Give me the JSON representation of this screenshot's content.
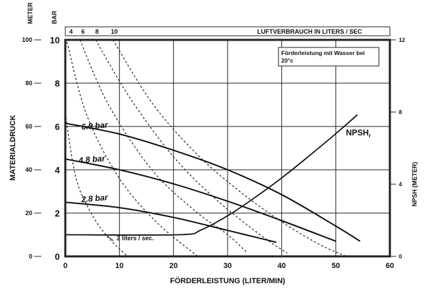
{
  "chart_data": {
    "type": "line",
    "xlabel": "FÖRDERLEISTUNG (LITER/MIN)",
    "ylabel": "MATERIALDRUCK",
    "unit_left_outer": "METER",
    "unit_left_inner": "BAR",
    "y2label": "NPSH (METER)",
    "top_axis_title": "LUFTVERBRAUCH IN LITERS / SEC",
    "note": "Förderleistung mit Wasser bei 20°c",
    "xlim": [
      0,
      60
    ],
    "ylim_bar": [
      0,
      10
    ],
    "ylim_meter": [
      0,
      100
    ],
    "ylim_npsh": [
      0,
      12
    ],
    "x_ticks": [
      "0",
      "10",
      "20",
      "30",
      "40",
      "50",
      "60"
    ],
    "y_bar_ticks": [
      "0",
      "2",
      "4",
      "6",
      "8",
      "10"
    ],
    "y_meter_ticks": [
      "0",
      "20",
      "40",
      "60",
      "80",
      "100"
    ],
    "y_npsh_ticks": [
      "0",
      "4",
      "8",
      "12"
    ],
    "top_ticks": [
      "4",
      "6",
      "8",
      "10"
    ],
    "grid": true,
    "pressure_series": [
      {
        "name": "6.9 bar",
        "x": [
          0,
          10,
          20,
          30,
          40,
          50,
          54.5
        ],
        "y": [
          6.15,
          5.65,
          4.9,
          4.0,
          2.85,
          1.4,
          0.7
        ]
      },
      {
        "name": "4.8 bar",
        "x": [
          0,
          10,
          20,
          30,
          40,
          50
        ],
        "y": [
          4.5,
          4.0,
          3.35,
          2.55,
          1.65,
          0.7
        ]
      },
      {
        "name": "2.8 bar",
        "x": [
          0,
          10,
          20,
          30,
          39
        ],
        "y": [
          2.5,
          2.25,
          1.8,
          1.2,
          0.65
        ]
      }
    ],
    "air_series": [
      {
        "name": "2 liters / sec.",
        "x": [
          0,
          2,
          5,
          8,
          11.5
        ],
        "y": [
          6.6,
          3.6,
          1.9,
          0.85,
          0.0
        ]
      },
      {
        "name": "4",
        "x": [
          0.3,
          4,
          10,
          17,
          24.5
        ],
        "y": [
          9.9,
          6.5,
          3.6,
          1.55,
          0.0
        ]
      },
      {
        "name": "6",
        "x": [
          2.7,
          8,
          16,
          24,
          30,
          33.5
        ],
        "y": [
          10,
          7.0,
          4.0,
          2.1,
          1.0,
          0.2
        ]
      },
      {
        "name": "8",
        "x": [
          5.6,
          12,
          20,
          28,
          36,
          41
        ],
        "y": [
          10,
          7.3,
          4.6,
          2.6,
          1.0,
          0.15
        ]
      },
      {
        "name": "10",
        "x": [
          8.8,
          16,
          24,
          32,
          40,
          47,
          52
        ],
        "y": [
          10,
          7.1,
          4.8,
          3.05,
          1.6,
          0.55,
          0.0
        ]
      }
    ],
    "npsh": {
      "name": "NPSH",
      "subscript": "r",
      "x": [
        0,
        21,
        25,
        30,
        35,
        40,
        45,
        50,
        54
      ],
      "y": [
        1.2,
        1.2,
        1.45,
        2.25,
        3.25,
        4.35,
        5.55,
        6.8,
        7.85
      ]
    }
  }
}
